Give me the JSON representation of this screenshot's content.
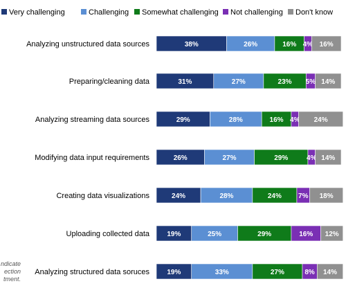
{
  "chart_data": {
    "type": "bar",
    "orientation": "horizontal",
    "stacked": true,
    "percent_stacked": true,
    "title": "",
    "xlabel": "",
    "ylabel": "",
    "xlim": [
      0,
      100
    ],
    "grid": false,
    "legend_position": "top",
    "categories": [
      "Analyzing unstructured data sources",
      "Preparing/cleaning data",
      "Analyzing streaming data sources",
      "Modifying data input requirements",
      "Creating data visualizations",
      "Uploading collected data",
      "Analyzing structured data soruces"
    ],
    "series": [
      {
        "name": "Very challenging",
        "color": "#1f3a78",
        "values": [
          38,
          31,
          29,
          26,
          24,
          19,
          19
        ]
      },
      {
        "name": "Challenging",
        "color": "#5b8fd3",
        "values": [
          26,
          27,
          28,
          27,
          28,
          25,
          33
        ]
      },
      {
        "name": "Somewhat challenging",
        "color": "#0f7b1a",
        "values": [
          16,
          23,
          16,
          29,
          24,
          29,
          27
        ]
      },
      {
        "name": "Not challenging",
        "color": "#7a2fb4",
        "values": [
          4,
          5,
          4,
          4,
          7,
          16,
          8
        ]
      },
      {
        "name": "Don't know",
        "color": "#909090",
        "values": [
          16,
          14,
          24,
          14,
          18,
          12,
          14
        ]
      }
    ]
  },
  "side_note": [
    "ndicate",
    "ection",
    "tment."
  ]
}
